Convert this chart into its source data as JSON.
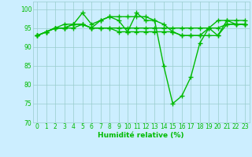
{
  "xlabel": "Humidité relative (%)",
  "xlim": [
    -0.5,
    23.5
  ],
  "ylim": [
    70,
    102
  ],
  "yticks": [
    70,
    75,
    80,
    85,
    90,
    95,
    100
  ],
  "xticks": [
    0,
    1,
    2,
    3,
    4,
    5,
    6,
    7,
    8,
    9,
    10,
    11,
    12,
    13,
    14,
    15,
    16,
    17,
    18,
    19,
    20,
    21,
    22,
    23
  ],
  "bg_color": "#cceeff",
  "grid_color": "#99cccc",
  "line_color": "#00bb00",
  "marker": "+",
  "marker_size": 4,
  "line_width": 1.0,
  "series": [
    [
      93,
      94,
      95,
      95,
      96,
      99,
      96,
      97,
      98,
      97,
      94,
      99,
      97,
      97,
      85,
      75,
      77,
      82,
      91,
      95,
      93,
      97,
      96,
      96
    ],
    [
      93,
      94,
      95,
      95,
      96,
      96,
      95,
      95,
      95,
      95,
      95,
      95,
      95,
      95,
      95,
      95,
      95,
      95,
      95,
      95,
      95,
      96,
      96,
      96
    ],
    [
      93,
      94,
      95,
      95,
      95,
      96,
      95,
      97,
      98,
      98,
      98,
      98,
      98,
      97,
      96,
      94,
      93,
      93,
      93,
      95,
      97,
      97,
      97,
      97
    ],
    [
      93,
      94,
      95,
      96,
      96,
      96,
      95,
      95,
      95,
      94,
      94,
      94,
      94,
      94,
      94,
      94,
      93,
      93,
      93,
      93,
      93,
      96,
      96,
      96
    ]
  ]
}
